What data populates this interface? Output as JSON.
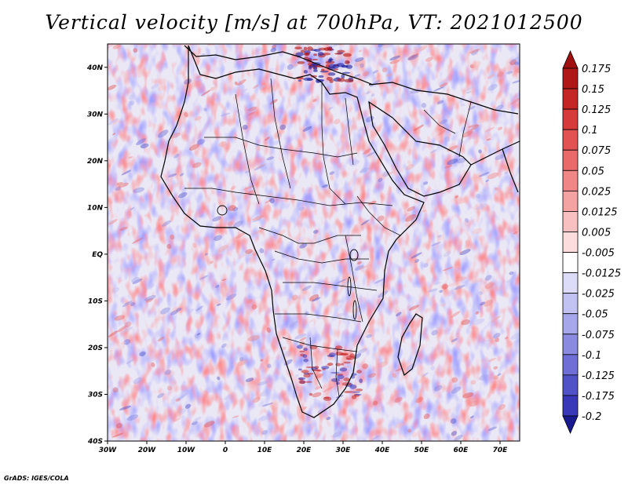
{
  "title": "Vertical velocity [m/s] at 700hPa, VT: 2021012500",
  "credit": "GrADS: IGES/COLA",
  "map": {
    "lon_range": [
      -30,
      75
    ],
    "lat_range": [
      -40,
      45
    ],
    "lon_ticks": [
      "30W",
      "20W",
      "10W",
      "0",
      "10E",
      "20E",
      "30E",
      "40E",
      "50E",
      "60E",
      "70E"
    ],
    "lat_ticks": [
      "40N",
      "30N",
      "20N",
      "10N",
      "EQ",
      "10S",
      "20S",
      "30S",
      "40S"
    ]
  },
  "colorbar": {
    "levels": [
      "0.175",
      "0.15",
      "0.125",
      "0.1",
      "0.075",
      "0.05",
      "0.025",
      "0.0125",
      "0.005",
      "-0.005",
      "-0.0125",
      "-0.025",
      "-0.05",
      "-0.075",
      "-0.1",
      "-0.125",
      "-0.175",
      "-0.2"
    ],
    "colors": [
      "#b01818",
      "#c42626",
      "#d63a3a",
      "#e25252",
      "#ea6a6a",
      "#f08686",
      "#f4a2a2",
      "#f8c0c0",
      "#fcdcdc",
      "#ffffff",
      "#dcdcf8",
      "#c2c2f2",
      "#a6a6ea",
      "#8a8ae0",
      "#6e6ed6",
      "#5252c8",
      "#3838b8",
      "#2222a0"
    ],
    "top_arrow_color": "#a01010",
    "bottom_arrow_color": "#1a1a90"
  }
}
